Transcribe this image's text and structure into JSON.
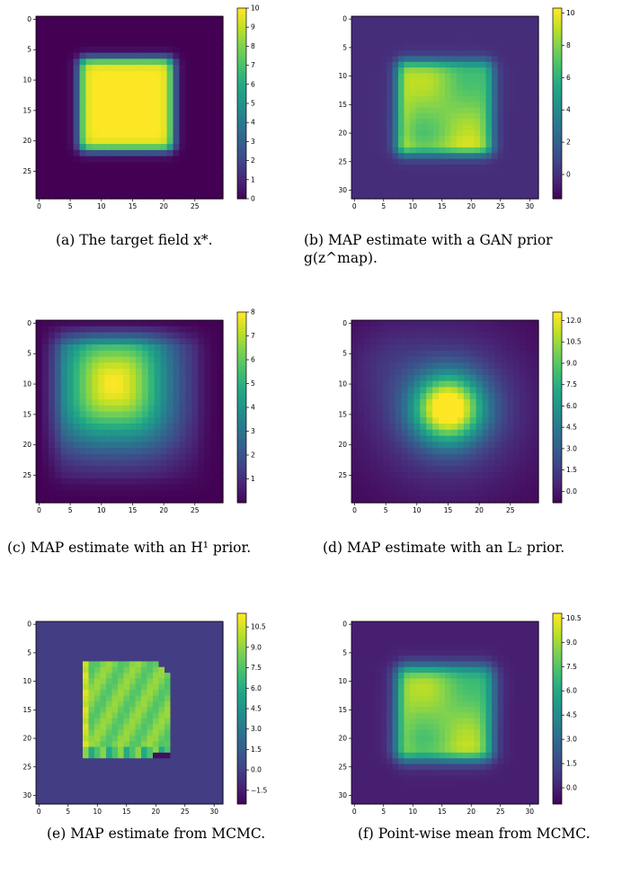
{
  "panels": [
    {
      "id": "a",
      "caption": "(a)  The target field x*.",
      "chart_data": {
        "type": "heatmap",
        "x_ticks": [
          "0",
          "5",
          "10",
          "15",
          "20",
          "25"
        ],
        "y_ticks": [
          "0",
          "5",
          "10",
          "15",
          "20",
          "25"
        ],
        "colorbar_ticks": [
          "0",
          "1",
          "2",
          "3",
          "4",
          "5",
          "6",
          "7",
          "8",
          "9",
          "10"
        ],
        "colorbar_range": [
          0,
          10
        ],
        "grid_size": 30,
        "field": "square",
        "square": [
          7,
          21
        ],
        "value_inside": 10,
        "value_outside": 0
      }
    },
    {
      "id": "b",
      "caption": "(b)  MAP estimate with a GAN prior g(z^map).",
      "chart_data": {
        "type": "heatmap",
        "x_ticks": [
          "0",
          "5",
          "10",
          "15",
          "20",
          "25",
          "30"
        ],
        "y_ticks": [
          "0",
          "5",
          "10",
          "15",
          "20",
          "25",
          "30"
        ],
        "colorbar_ticks": [
          "0",
          "2",
          "4",
          "6",
          "8",
          "10"
        ],
        "colorbar_range": [
          -1.5,
          10.3
        ],
        "grid_size": 32,
        "field": "gan",
        "square": [
          8,
          23
        ],
        "value_inside": 8,
        "value_outside": 0
      }
    },
    {
      "id": "c",
      "caption": "(c)  MAP estimate with an H¹ prior.",
      "chart_data": {
        "type": "heatmap",
        "x_ticks": [
          "0",
          "5",
          "10",
          "15",
          "20",
          "25"
        ],
        "y_ticks": [
          "0",
          "5",
          "10",
          "15",
          "20",
          "25"
        ],
        "colorbar_ticks": [
          "1",
          "2",
          "3",
          "4",
          "5",
          "6",
          "7",
          "8"
        ],
        "colorbar_range": [
          0,
          8
        ],
        "grid_size": 30,
        "field": "h1",
        "center": [
          12,
          10
        ],
        "peak": 8
      }
    },
    {
      "id": "d",
      "caption": "(d)  MAP estimate with an L₂ prior.",
      "chart_data": {
        "type": "heatmap",
        "x_ticks": [
          "0",
          "5",
          "10",
          "15",
          "20",
          "25"
        ],
        "y_ticks": [
          "0",
          "5",
          "10",
          "15",
          "20",
          "25"
        ],
        "colorbar_ticks": [
          "0.0",
          "1.5",
          "3.0",
          "4.5",
          "6.0",
          "7.5",
          "9.0",
          "10.5",
          "12.0"
        ],
        "colorbar_range": [
          -0.8,
          12.6
        ],
        "grid_size": 30,
        "field": "l2",
        "center": [
          15,
          14
        ],
        "peak": 12.5
      }
    },
    {
      "id": "e",
      "caption": "(e)  MAP estimate from MCMC.",
      "chart_data": {
        "type": "heatmap",
        "x_ticks": [
          "0",
          "5",
          "10",
          "15",
          "20",
          "25",
          "30"
        ],
        "y_ticks": [
          "0",
          "5",
          "10",
          "15",
          "20",
          "25",
          "30"
        ],
        "colorbar_ticks": [
          "−1.5",
          "0.0",
          "1.5",
          "3.0",
          "4.5",
          "6.0",
          "7.5",
          "9.0",
          "10.5"
        ],
        "colorbar_range": [
          -2.5,
          11.5
        ],
        "grid_size": 32,
        "field": "mcmc_map",
        "square": [
          8,
          23
        ],
        "value_inside": 9,
        "value_outside": 0
      }
    },
    {
      "id": "f",
      "caption": "(f)  Point-wise mean from MCMC.",
      "chart_data": {
        "type": "heatmap",
        "x_ticks": [
          "0",
          "5",
          "10",
          "15",
          "20",
          "25",
          "30"
        ],
        "y_ticks": [
          "0",
          "5",
          "10",
          "15",
          "20",
          "25",
          "30"
        ],
        "colorbar_ticks": [
          "0.0",
          "1.5",
          "3.0",
          "4.5",
          "6.0",
          "7.5",
          "9.0",
          "10.5"
        ],
        "colorbar_range": [
          -1.0,
          10.8
        ],
        "grid_size": 32,
        "field": "mcmc_mean",
        "square": [
          8,
          23
        ],
        "value_inside": 8.5,
        "value_outside": 0
      }
    }
  ]
}
